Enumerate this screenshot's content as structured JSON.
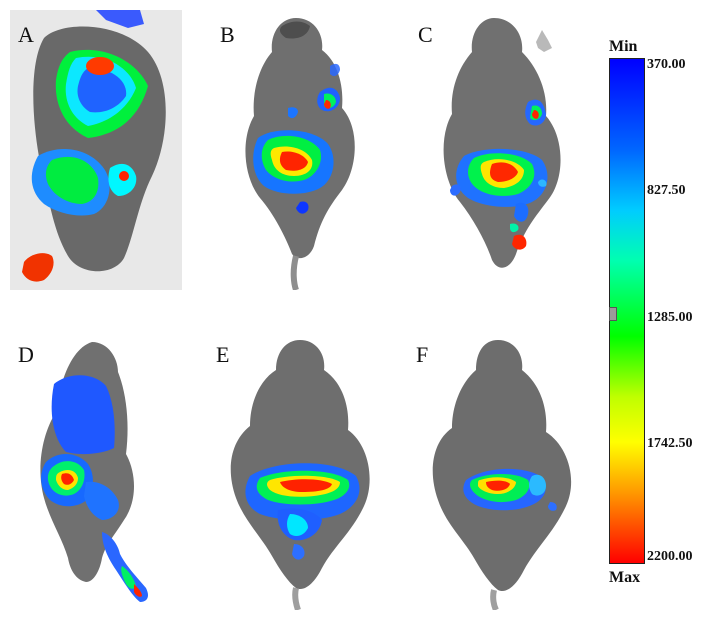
{
  "panels": [
    {
      "label": "A"
    },
    {
      "label": "B"
    },
    {
      "label": "C"
    },
    {
      "label": "D"
    },
    {
      "label": "E"
    },
    {
      "label": "F"
    }
  ],
  "colorbar": {
    "min_label": "Min",
    "max_label": "Max",
    "ticks": [
      "370.00",
      "827.50",
      "1285.00",
      "1742.50",
      "2200.00"
    ],
    "colors": {
      "low": "#0000ff",
      "mid": "#00ff00",
      "high": "#ff0000"
    }
  }
}
